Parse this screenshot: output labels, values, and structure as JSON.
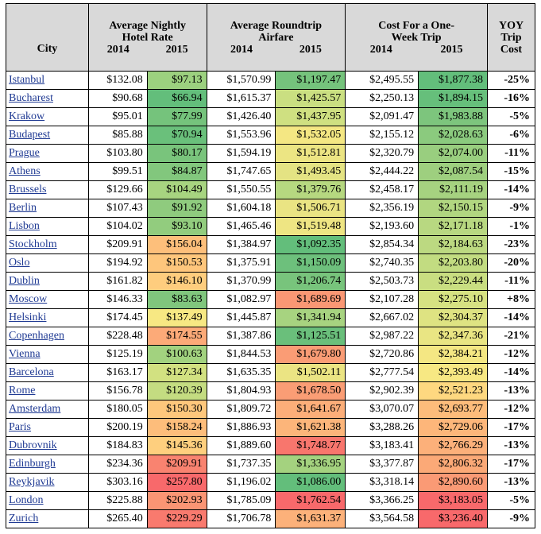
{
  "headers": {
    "city": "City",
    "hotel": "Average Nightly Hotel Rate",
    "airfare": "Average Roundtrip Airfare",
    "cost": "Cost For a One-Week Trip",
    "yoy": "YOY Trip Cost",
    "y2014": "2014",
    "y2015": "2015"
  },
  "colors": {
    "green_dark": "#63be7b",
    "green": "#86c97e",
    "green_light": "#b6d880",
    "yellow_green": "#d7e382",
    "yellow": "#fbe983",
    "orange": "#fdbf7b",
    "orange_red": "#fba276",
    "red": "#f8696b"
  },
  "rows": [
    {
      "city": "Istanbul",
      "h14": "$132.08",
      "h15": "$97.13",
      "a14": "$1,570.99",
      "a15": "$1,197.47",
      "c14": "$2,495.55",
      "c15": "$1,877.38",
      "yoy": "-25%",
      "hc": "#9cd17f",
      "ac": "#75c37c",
      "cc": "#63be7b"
    },
    {
      "city": "Bucharest",
      "h14": "$90.68",
      "h15": "$66.94",
      "a14": "$1,615.37",
      "a15": "$1,425.57",
      "c14": "$2,250.13",
      "c15": "$1,894.15",
      "yoy": "-16%",
      "hc": "#63be7b",
      "ac": "#cadf81",
      "cc": "#66bf7b"
    },
    {
      "city": "Krakow",
      "h14": "$95.01",
      "h15": "$77.99",
      "a14": "$1,426.40",
      "a15": "$1,437.95",
      "c14": "$2,091.47",
      "c15": "$1,983.88",
      "yoy": "-5%",
      "hc": "#75c37c",
      "ac": "#cfe081",
      "cc": "#7dc57d"
    },
    {
      "city": "Budapest",
      "h14": "$85.88",
      "h15": "$70.94",
      "a14": "$1,553.96",
      "a15": "$1,532.05",
      "c14": "$2,155.12",
      "c15": "$2,028.63",
      "yoy": "-6%",
      "hc": "#6ac07b",
      "ac": "#f4e783",
      "cc": "#8bca7e"
    },
    {
      "city": "Prague",
      "h14": "$103.80",
      "h15": "$80.17",
      "a14": "$1,594.19",
      "a15": "$1,512.81",
      "c14": "$2,320.79",
      "c15": "$2,074.00",
      "yoy": "-11%",
      "hc": "#79c47c",
      "ac": "#ece583",
      "cc": "#99ce7f"
    },
    {
      "city": "Athens",
      "h14": "$99.51",
      "h15": "$84.87",
      "a14": "$1,747.65",
      "a15": "$1,493.45",
      "c14": "$2,444.22",
      "c15": "$2,087.54",
      "yoy": "-15%",
      "hc": "#82c77d",
      "ac": "#e4e383",
      "cc": "#9ecf7f"
    },
    {
      "city": "Brussels",
      "h14": "$129.66",
      "h15": "$104.49",
      "a14": "$1,550.55",
      "a15": "$1,379.76",
      "c14": "$2,458.17",
      "c15": "$2,111.19",
      "yoy": "-14%",
      "hc": "#a7d480",
      "ac": "#b6d880",
      "cc": "#a6d280"
    },
    {
      "city": "Berlin",
      "h14": "$107.43",
      "h15": "$91.92",
      "a14": "$1,604.18",
      "a15": "$1,506.71",
      "c14": "$2,356.19",
      "c15": "$2,150.15",
      "yoy": "-9%",
      "hc": "#8fcb7e",
      "ac": "#eae483",
      "cc": "#b1d680"
    },
    {
      "city": "Lisbon",
      "h14": "$104.02",
      "h15": "$93.10",
      "a14": "$1,465.46",
      "a15": "$1,519.48",
      "c14": "$2,193.60",
      "c15": "$2,171.18",
      "yoy": "-1%",
      "hc": "#92cc7e",
      "ac": "#eee583",
      "cc": "#b8d881"
    },
    {
      "city": "Stockholm",
      "h14": "$209.91",
      "h15": "$156.04",
      "a14": "$1,384.97",
      "a15": "$1,092.35",
      "c14": "$2,854.34",
      "c15": "$2,184.63",
      "yoy": "-23%",
      "hc": "#fdbf7b",
      "ac": "#63be7b",
      "cc": "#bcd981"
    },
    {
      "city": "Oslo",
      "h14": "$194.92",
      "h15": "$150.53",
      "a14": "$1,375.91",
      "a15": "$1,150.09",
      "c14": "$2,740.35",
      "c15": "$2,203.80",
      "yoy": "-20%",
      "hc": "#fec67c",
      "ac": "#6dc07c",
      "cc": "#c2dc81"
    },
    {
      "city": "Dublin",
      "h14": "$161.82",
      "h15": "$146.10",
      "a14": "$1,370.99",
      "a15": "$1,206.74",
      "c14": "$2,503.73",
      "c15": "$2,229.44",
      "yoy": "-11%",
      "hc": "#fecd7e",
      "ac": "#78c47c",
      "cc": "#c9de81"
    },
    {
      "city": "Moscow",
      "h14": "$146.33",
      "h15": "$83.63",
      "a14": "$1,082.97",
      "a15": "$1,689.69",
      "c14": "$2,107.28",
      "c15": "$2,275.10",
      "yoy": "+8%",
      "hc": "#80c67d",
      "ac": "#fa9774",
      "cc": "#d6e282"
    },
    {
      "city": "Helsinki",
      "h14": "$174.45",
      "h15": "$137.49",
      "a14": "$1,445.87",
      "a15": "$1,341.94",
      "c14": "$2,667.02",
      "c15": "$2,304.37",
      "yoy": "-14%",
      "hc": "#f7e883",
      "ac": "#a7d380",
      "cc": "#dee382"
    },
    {
      "city": "Copenhagen",
      "h14": "$228.48",
      "h15": "$174.55",
      "a14": "$1,387.86",
      "a15": "$1,125.51",
      "c14": "$2,987.22",
      "c15": "$2,347.36",
      "yoy": "-21%",
      "hc": "#fcaa78",
      "ac": "#6abf7b",
      "cc": "#e9e583"
    },
    {
      "city": "Vienna",
      "h14": "$125.19",
      "h15": "$100.63",
      "a14": "$1,844.53",
      "a15": "$1,679.80",
      "c14": "$2,720.86",
      "c15": "$2,384.21",
      "yoy": "-12%",
      "hc": "#a2d27f",
      "ac": "#fa9c75",
      "cc": "#f4e783"
    },
    {
      "city": "Barcelona",
      "h14": "$163.17",
      "h15": "$127.34",
      "a14": "$1,635.35",
      "a15": "$1,502.11",
      "c14": "$2,777.54",
      "c15": "$2,393.49",
      "yoy": "-14%",
      "hc": "#d2e181",
      "ac": "#ebe483",
      "cc": "#f7e883"
    },
    {
      "city": "Rome",
      "h14": "$156.78",
      "h15": "$120.39",
      "a14": "$1,804.93",
      "a15": "$1,678.50",
      "c14": "$2,902.39",
      "c15": "$2,521.23",
      "yoy": "-13%",
      "hc": "#c4dc81",
      "ac": "#fa9d75",
      "cc": "#fed880"
    },
    {
      "city": "Amsterdam",
      "h14": "$180.05",
      "h15": "$150.30",
      "a14": "$1,809.72",
      "a15": "$1,641.67",
      "c14": "$3,070.07",
      "c15": "$2,693.77",
      "yoy": "-12%",
      "hc": "#fec77c",
      "ac": "#fcae79",
      "cc": "#fdbc7b"
    },
    {
      "city": "Paris",
      "h14": "$200.19",
      "h15": "$158.24",
      "a14": "$1,886.93",
      "a15": "$1,621.38",
      "c14": "$3,288.26",
      "c15": "$2,729.06",
      "yoy": "-17%",
      "hc": "#fdbd7b",
      "ac": "#fcb57a",
      "cc": "#fdb67a"
    },
    {
      "city": "Dubrovnik",
      "h14": "$184.83",
      "h15": "$145.36",
      "a14": "$1,889.60",
      "a15": "$1,748.77",
      "c14": "$3,183.41",
      "c15": "$2,766.29",
      "yoy": "-13%",
      "hc": "#fecf7e",
      "ac": "#f8766d",
      "cc": "#fcb07a"
    },
    {
      "city": "Edinburgh",
      "h14": "$234.36",
      "h15": "$209.91",
      "a14": "$1,737.35",
      "a15": "$1,336.95",
      "c14": "$3,377.87",
      "c15": "$2,806.32",
      "yoy": "-17%",
      "hc": "#f98370",
      "ac": "#a4d27f",
      "cc": "#fba977"
    },
    {
      "city": "Reykjavik",
      "h14": "$303.16",
      "h15": "$257.80",
      "a14": "$1,196.02",
      "a15": "$1,086.00",
      "c14": "$3,318.14",
      "c15": "$2,890.60",
      "yoy": "-13%",
      "hc": "#f8696b",
      "ac": "#63be7b",
      "cc": "#fa9a75"
    },
    {
      "city": "London",
      "h14": "$225.88",
      "h15": "$202.93",
      "a14": "$1,785.09",
      "a15": "$1,762.54",
      "c14": "$3,366.25",
      "c15": "$3,183.05",
      "yoy": "-5%",
      "hc": "#fa9574",
      "ac": "#f8696b",
      "cc": "#f8696b"
    },
    {
      "city": "Zurich",
      "h14": "$265.40",
      "h15": "$229.29",
      "a14": "$1,706.78",
      "a15": "$1,631.37",
      "c14": "$3,564.58",
      "c15": "$3,236.40",
      "yoy": "-9%",
      "hc": "#f97a6e",
      "ac": "#fcb17a",
      "cc": "#f8696b"
    }
  ]
}
